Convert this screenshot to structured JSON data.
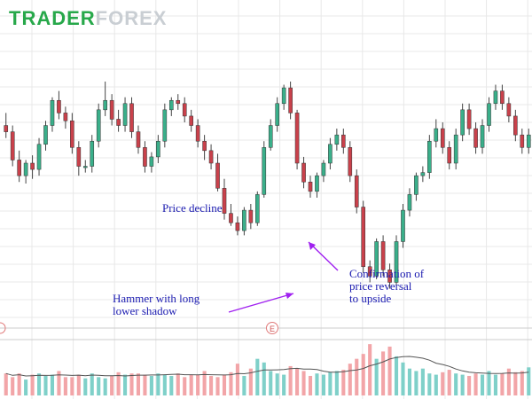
{
  "brand": {
    "part1": "TRADER",
    "part2": "FOREX"
  },
  "colors": {
    "up": "#3aaf8a",
    "down": "#c9414b",
    "vol_up": "#7fd0c9",
    "vol_down": "#f2a5a8",
    "grid": "#e8e8e8",
    "annotation": "#1b1bb0",
    "arrow": "#a020f0"
  },
  "annotations": {
    "price_decline": "Price decline",
    "hammer": [
      "Hammer with long",
      "lower shadow"
    ],
    "confirmation": [
      "Confirmation of",
      "price reversal",
      "to upside"
    ]
  },
  "event_markers": [
    "E"
  ],
  "chart_data": {
    "type": "candlestick",
    "title": "",
    "xlabel": "",
    "ylabel": "",
    "grid": true,
    "candles": [
      [
        182,
        178,
        190,
        174
      ],
      [
        178,
        160,
        182,
        156
      ],
      [
        160,
        150,
        166,
        146
      ],
      [
        150,
        158,
        160,
        145
      ],
      [
        158,
        154,
        163,
        148
      ],
      [
        154,
        170,
        174,
        150
      ],
      [
        170,
        182,
        185,
        166
      ],
      [
        182,
        198,
        200,
        178
      ],
      [
        198,
        190,
        204,
        186
      ],
      [
        190,
        185,
        194,
        180
      ],
      [
        185,
        168,
        190,
        164
      ],
      [
        168,
        156,
        172,
        150
      ],
      [
        156,
        156,
        160,
        152
      ],
      [
        156,
        172,
        176,
        152
      ],
      [
        172,
        192,
        196,
        168
      ],
      [
        192,
        198,
        210,
        188
      ],
      [
        198,
        186,
        202,
        182
      ],
      [
        186,
        182,
        192,
        178
      ],
      [
        182,
        196,
        200,
        178
      ],
      [
        196,
        178,
        200,
        174
      ],
      [
        178,
        168,
        182,
        164
      ],
      [
        168,
        156,
        172,
        152
      ],
      [
        156,
        162,
        165,
        152
      ],
      [
        162,
        172,
        176,
        158
      ],
      [
        172,
        192,
        196,
        168
      ],
      [
        192,
        198,
        200,
        188
      ],
      [
        198,
        196,
        202,
        192
      ],
      [
        196,
        188,
        200,
        184
      ],
      [
        188,
        182,
        192,
        178
      ],
      [
        182,
        172,
        186,
        168
      ],
      [
        172,
        166,
        176,
        160
      ],
      [
        166,
        158,
        170,
        154
      ],
      [
        158,
        142,
        164,
        140
      ],
      [
        142,
        126,
        148,
        122
      ],
      [
        126,
        120,
        132,
        118
      ],
      [
        120,
        115,
        124,
        112
      ],
      [
        115,
        128,
        130,
        112
      ],
      [
        128,
        120,
        132,
        116
      ],
      [
        120,
        138,
        140,
        118
      ],
      [
        138,
        168,
        172,
        136
      ],
      [
        168,
        182,
        186,
        166
      ],
      [
        182,
        196,
        200,
        178
      ],
      [
        196,
        206,
        208,
        192
      ],
      [
        206,
        190,
        210,
        186
      ],
      [
        190,
        158,
        192,
        154
      ],
      [
        158,
        146,
        162,
        142
      ],
      [
        146,
        140,
        150,
        136
      ],
      [
        140,
        150,
        152,
        136
      ],
      [
        150,
        158,
        160,
        146
      ],
      [
        158,
        170,
        174,
        154
      ],
      [
        170,
        176,
        180,
        166
      ],
      [
        176,
        168,
        180,
        164
      ],
      [
        168,
        150,
        172,
        146
      ],
      [
        150,
        130,
        154,
        126
      ],
      [
        130,
        92,
        134,
        88
      ],
      [
        92,
        86,
        96,
        82
      ],
      [
        86,
        108,
        110,
        84
      ],
      [
        108,
        90,
        112,
        86
      ],
      [
        90,
        82,
        94,
        78
      ],
      [
        82,
        108,
        112,
        80
      ],
      [
        108,
        128,
        132,
        104
      ],
      [
        128,
        138,
        142,
        124
      ],
      [
        138,
        150,
        152,
        134
      ],
      [
        150,
        152,
        156,
        146
      ],
      [
        152,
        172,
        176,
        148
      ],
      [
        172,
        180,
        186,
        168
      ],
      [
        180,
        168,
        184,
        164
      ],
      [
        168,
        158,
        172,
        154
      ],
      [
        158,
        176,
        180,
        154
      ],
      [
        176,
        192,
        196,
        172
      ],
      [
        192,
        180,
        196,
        176
      ],
      [
        180,
        168,
        184,
        164
      ],
      [
        168,
        182,
        186,
        164
      ],
      [
        182,
        196,
        200,
        178
      ],
      [
        196,
        204,
        208,
        192
      ],
      [
        204,
        196,
        208,
        192
      ],
      [
        196,
        188,
        200,
        184
      ],
      [
        188,
        176,
        192,
        172
      ],
      [
        176,
        168,
        180,
        164
      ],
      [
        168,
        176,
        180,
        164
      ]
    ],
    "volume": [
      18,
      15,
      18,
      13,
      17,
      18,
      16,
      17,
      20,
      15,
      15,
      17,
      14,
      18,
      15,
      14,
      16,
      19,
      17,
      18,
      18,
      17,
      16,
      18,
      17,
      16,
      18,
      15,
      17,
      17,
      20,
      16,
      15,
      17,
      19,
      26,
      16,
      22,
      30,
      27,
      20,
      18,
      17,
      24,
      22,
      20,
      16,
      18,
      17,
      19,
      20,
      21,
      26,
      30,
      34,
      42,
      30,
      36,
      40,
      32,
      27,
      22,
      20,
      22,
      18,
      17,
      19,
      21,
      18,
      17,
      16,
      18,
      17,
      20,
      17,
      18,
      22,
      19,
      20,
      23
    ]
  }
}
